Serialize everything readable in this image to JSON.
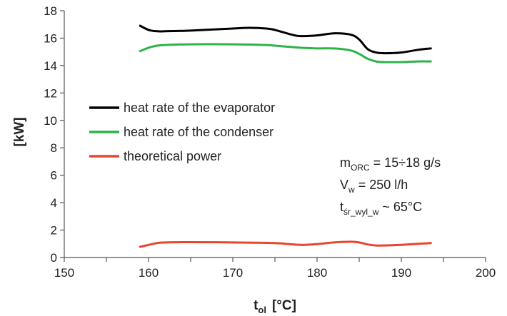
{
  "chart_data": {
    "type": "line",
    "xlabel": "t",
    "xlabel_sub": "ol",
    "xlabel_unit": "[°C]",
    "ylabel": "[kW]",
    "xlim": [
      150,
      200
    ],
    "ylim": [
      0,
      18
    ],
    "xticks": [
      "150",
      "160",
      "170",
      "180",
      "190",
      "200"
    ],
    "yticks": [
      "0",
      "2",
      "4",
      "6",
      "8",
      "10",
      "12",
      "14",
      "16",
      "18"
    ],
    "grid": false,
    "legend_position": "center-left",
    "series": [
      {
        "name": "heat rate of the evaporator",
        "color": "#000000",
        "x": [
          159,
          160,
          161,
          162,
          165,
          170,
          172,
          174,
          175,
          177,
          178,
          180,
          182,
          184,
          185,
          186,
          187,
          188,
          190,
          192,
          193.5
        ],
        "y": [
          16.9,
          16.6,
          16.5,
          16.5,
          16.55,
          16.7,
          16.75,
          16.7,
          16.6,
          16.25,
          16.15,
          16.2,
          16.35,
          16.25,
          15.9,
          15.2,
          14.95,
          14.9,
          14.95,
          15.15,
          15.25
        ]
      },
      {
        "name": "heat rate of the condenser",
        "color": "#2db34a",
        "x": [
          159,
          160,
          161,
          162,
          165,
          170,
          174,
          175,
          177,
          178,
          180,
          182,
          184,
          185,
          186,
          187,
          188,
          190,
          192,
          193.5
        ],
        "y": [
          15.05,
          15.3,
          15.45,
          15.5,
          15.55,
          15.55,
          15.5,
          15.45,
          15.35,
          15.3,
          15.25,
          15.25,
          15.1,
          14.85,
          14.5,
          14.3,
          14.25,
          14.25,
          14.3,
          14.3
        ]
      },
      {
        "name": "theoretical power",
        "color": "#e8452c",
        "x": [
          159,
          160,
          161,
          162,
          165,
          170,
          175,
          178,
          180,
          182,
          184,
          185,
          186,
          187,
          188,
          190,
          192,
          193.5
        ],
        "y": [
          0.78,
          0.92,
          1.05,
          1.1,
          1.12,
          1.1,
          1.05,
          0.92,
          0.98,
          1.1,
          1.15,
          1.1,
          0.95,
          0.88,
          0.88,
          0.92,
          1.0,
          1.05
        ]
      }
    ],
    "annotations": [
      {
        "main": "m",
        "sub": "ORC",
        "rest": " = 15÷18 g/s"
      },
      {
        "main": "V",
        "sub": "w",
        "rest": " = 250 l/h"
      },
      {
        "main": "t",
        "sub": "śr_wyl_w",
        "rest": " ~ 65°C"
      }
    ]
  }
}
